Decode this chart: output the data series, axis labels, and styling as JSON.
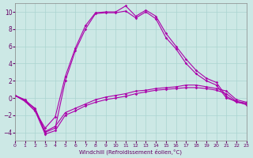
{
  "xlabel": "Windchill (Refroidissement éolien,°C)",
  "xlim": [
    0,
    23
  ],
  "ylim": [
    -5,
    11
  ],
  "yticks": [
    -4,
    -2,
    0,
    2,
    4,
    6,
    8,
    10
  ],
  "xticks": [
    0,
    1,
    2,
    3,
    4,
    5,
    6,
    7,
    8,
    9,
    10,
    11,
    12,
    13,
    14,
    15,
    16,
    17,
    18,
    19,
    20,
    21,
    22,
    23
  ],
  "background_color": "#cce8e5",
  "grid_color": "#aad4d0",
  "line_color": "#aa00aa",
  "arch1_x": [
    0,
    1,
    2,
    3,
    4,
    5,
    6,
    7,
    8,
    9,
    10,
    11,
    12,
    13,
    14,
    15,
    16,
    17,
    18,
    19,
    20,
    21,
    22,
    23
  ],
  "arch1_y": [
    0.3,
    -0.3,
    -1.5,
    -3.5,
    -2.2,
    2.5,
    5.8,
    8.4,
    9.9,
    10.0,
    10.0,
    10.7,
    9.5,
    10.2,
    9.5,
    7.5,
    6.0,
    4.5,
    3.2,
    2.3,
    1.8,
    0.2,
    -0.5,
    -0.7
  ],
  "arch2_x": [
    0,
    1,
    2,
    3,
    4,
    5,
    6,
    7,
    8,
    9,
    10,
    11,
    12,
    13,
    14,
    15,
    16,
    17,
    18,
    19,
    20,
    21,
    22,
    23
  ],
  "arch2_y": [
    0.3,
    -0.2,
    -1.3,
    -4.0,
    -3.5,
    2.0,
    5.5,
    8.0,
    9.8,
    9.9,
    9.9,
    10.1,
    9.3,
    10.0,
    9.2,
    7.0,
    5.7,
    4.0,
    2.8,
    2.0,
    1.5,
    0.0,
    -0.4,
    -0.6
  ],
  "flat1_x": [
    0,
    1,
    2,
    3,
    4,
    5,
    6,
    7,
    8,
    9,
    10,
    11,
    12,
    13,
    14,
    15,
    16,
    17,
    18,
    19,
    20,
    21,
    22,
    23
  ],
  "flat1_y": [
    0.3,
    -0.4,
    -1.5,
    -4.2,
    -3.8,
    -2.0,
    -1.5,
    -0.9,
    -0.5,
    -0.2,
    0.0,
    0.2,
    0.5,
    0.7,
    0.9,
    1.0,
    1.1,
    1.2,
    1.2,
    1.1,
    0.9,
    0.5,
    -0.4,
    -0.8
  ],
  "flat2_x": [
    0,
    1,
    2,
    3,
    4,
    5,
    6,
    7,
    8,
    9,
    10,
    11,
    12,
    13,
    14,
    15,
    16,
    17,
    18,
    19,
    20,
    21,
    22,
    23
  ],
  "flat2_y": [
    0.3,
    -0.3,
    -1.2,
    -3.9,
    -3.3,
    -1.7,
    -1.2,
    -0.7,
    -0.2,
    0.1,
    0.3,
    0.5,
    0.8,
    0.9,
    1.1,
    1.2,
    1.3,
    1.5,
    1.5,
    1.3,
    1.1,
    0.8,
    -0.2,
    -0.5
  ]
}
